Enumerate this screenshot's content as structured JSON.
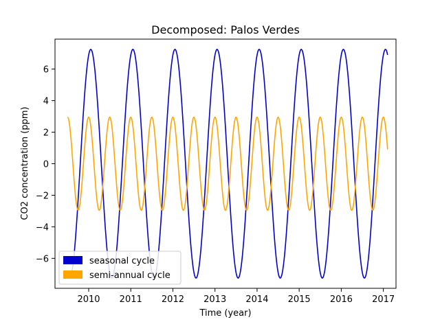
{
  "chart_data": {
    "type": "line",
    "title": "Decomposed: Palos Verdes",
    "xlabel": "Time (year)",
    "ylabel": "CO2 concentration (ppm)",
    "xlim": [
      2009.2,
      2017.3
    ],
    "ylim": [
      -7.9,
      7.9
    ],
    "xticks": [
      2010,
      2011,
      2012,
      2013,
      2014,
      2015,
      2016,
      2017
    ],
    "yticks": [
      -6,
      -4,
      -2,
      0,
      2,
      4,
      6
    ],
    "grid": false,
    "legend_position": "lower-left",
    "x_range": [
      2009.5,
      2017.1
    ],
    "series": [
      {
        "name": "seasonal cycle",
        "color": "#0000cc",
        "waveform": "sinusoid",
        "amplitude_ppm": 7.25,
        "period_years": 1.0,
        "first_peak_year": 2010.05
      },
      {
        "name": "semi-annual cycle",
        "color": "#ffa500",
        "waveform": "sinusoid",
        "amplitude_ppm": 2.95,
        "period_years": 0.5,
        "first_peak_year": 2009.5
      }
    ]
  }
}
